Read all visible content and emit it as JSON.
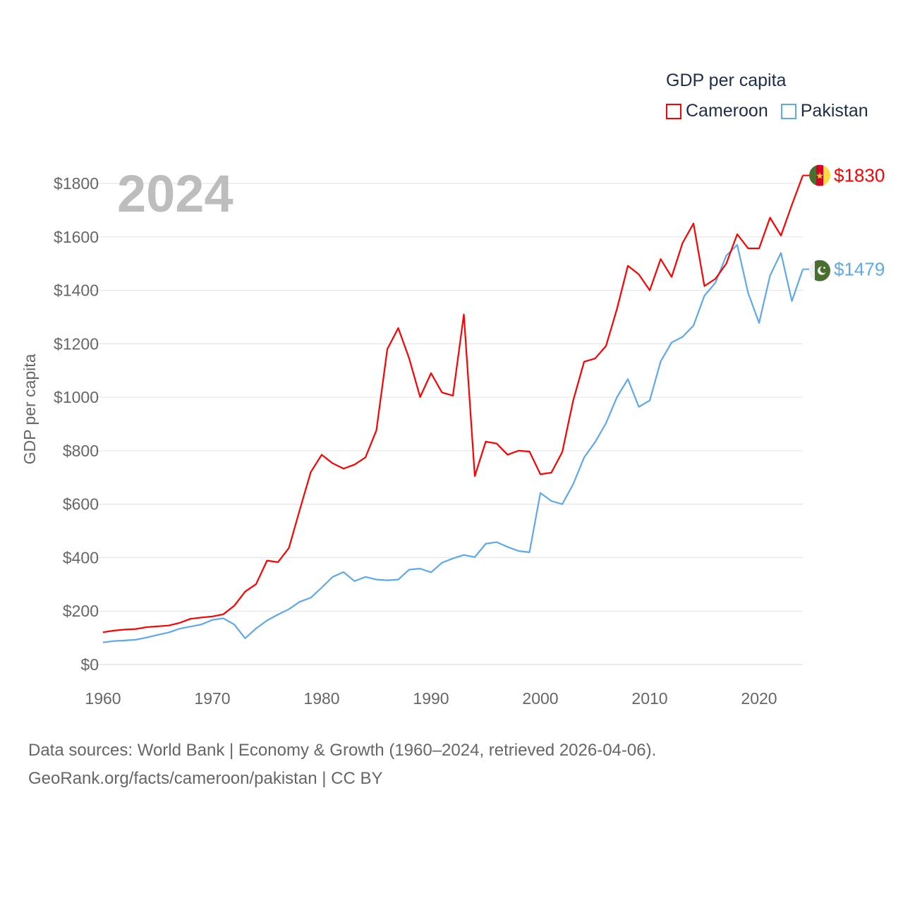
{
  "chart_data": {
    "type": "line",
    "title": "GDP per capita",
    "ylabel": "GDP per capita",
    "xlabel": "",
    "year_label": "2024",
    "xlim": [
      1960,
      2024
    ],
    "ylim": [
      0,
      1900
    ],
    "x_ticks": [
      1960,
      1970,
      1980,
      1990,
      2000,
      2010,
      2020
    ],
    "y_ticks": [
      0,
      200,
      400,
      600,
      800,
      1000,
      1200,
      1400,
      1600,
      1800
    ],
    "y_tick_labels": [
      "$0",
      "$200",
      "$400",
      "$600",
      "$800",
      "$1000",
      "$1200",
      "$1400",
      "$1600",
      "$1800"
    ],
    "grid": true,
    "legend_position": "top-right",
    "x": [
      1960,
      1961,
      1962,
      1963,
      1964,
      1965,
      1966,
      1967,
      1968,
      1969,
      1970,
      1971,
      1972,
      1973,
      1974,
      1975,
      1976,
      1977,
      1978,
      1979,
      1980,
      1981,
      1982,
      1983,
      1984,
      1985,
      1986,
      1987,
      1988,
      1989,
      1990,
      1991,
      1992,
      1993,
      1994,
      1995,
      1996,
      1997,
      1998,
      1999,
      2000,
      2001,
      2002,
      2003,
      2004,
      2005,
      2006,
      2007,
      2008,
      2009,
      2010,
      2011,
      2012,
      2013,
      2014,
      2015,
      2016,
      2017,
      2018,
      2019,
      2020,
      2021,
      2022,
      2023,
      2024
    ],
    "series": [
      {
        "name": "Cameroon",
        "color": "#ff0000",
        "end_label": "$1830",
        "values": [
          121,
          127,
          131,
          133,
          140,
          143,
          146,
          156,
          171,
          176,
          180,
          188,
          220,
          273,
          301,
          389,
          383,
          436,
          580,
          720,
          785,
          753,
          733,
          748,
          775,
          876,
          1180,
          1259,
          1145,
          1001,
          1090,
          1018,
          1006,
          1310,
          705,
          834,
          827,
          785,
          800,
          797,
          712,
          718,
          795,
          988,
          1133,
          1145,
          1192,
          1330,
          1492,
          1460,
          1400,
          1517,
          1450,
          1577,
          1650,
          1416,
          1443,
          1500,
          1610,
          1557,
          1557,
          1672,
          1605,
          1720,
          1830
        ]
      },
      {
        "name": "Pakistan",
        "color": "#5ea8ec",
        "end_label": "$1479",
        "values": [
          83,
          88,
          90,
          93,
          101,
          111,
          120,
          134,
          142,
          150,
          167,
          173,
          150,
          98,
          135,
          165,
          187,
          207,
          235,
          250,
          288,
          328,
          346,
          312,
          328,
          318,
          315,
          318,
          355,
          359,
          345,
          381,
          397,
          410,
          402,
          452,
          458,
          440,
          425,
          420,
          642,
          612,
          600,
          675,
          775,
          832,
          903,
          1000,
          1068,
          964,
          988,
          1134,
          1205,
          1226,
          1268,
          1380,
          1428,
          1530,
          1570,
          1390,
          1278,
          1455,
          1540,
          1360,
          1479
        ]
      }
    ]
  },
  "footer": {
    "line1": "Data sources: World Bank | Economy & Growth (1960–2024, retrieved 2026-04-06).",
    "line2": "GeoRank.org/facts/cameroon/pakistan | CC BY"
  }
}
